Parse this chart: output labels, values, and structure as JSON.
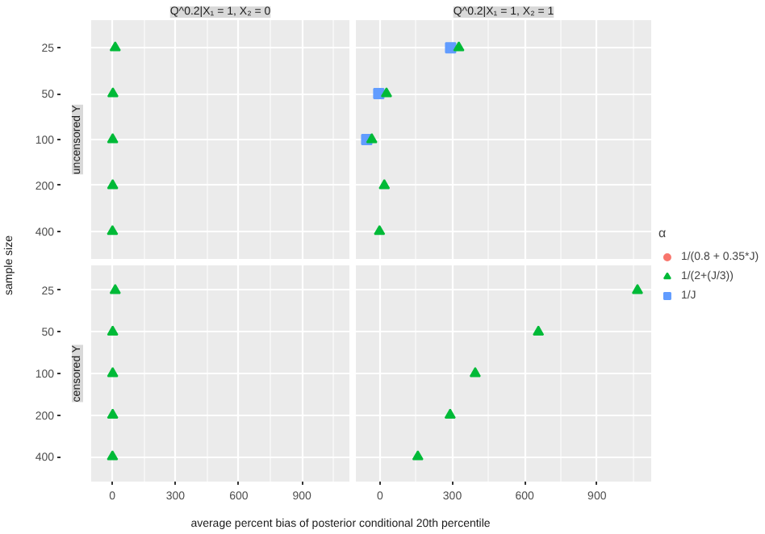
{
  "chart_data": [
    {
      "type": "scatter",
      "orientation": "horizontal",
      "title": "Q^0.2|X₁ = 1, X₂ = 0",
      "ylabel": "sample size",
      "annotations": [
        "uncensored Y"
      ],
      "categories": [
        "25",
        "50",
        "100",
        "200",
        "400"
      ],
      "xlim": [
        -100,
        1125
      ],
      "xticks": [
        0,
        300,
        600,
        900
      ],
      "tick_labels": "y",
      "grid": true,
      "series": [
        {
          "color": "#f8766d",
          "marker": "circle",
          "values": [
            null,
            null,
            null,
            null,
            null
          ]
        },
        {
          "color": "#00ba38",
          "marker": "triangle",
          "values": [
            14,
            3,
            2,
            2,
            1
          ]
        },
        {
          "color": "#619cff",
          "marker": "square",
          "values": [
            null,
            null,
            null,
            null,
            null
          ]
        }
      ]
    },
    {
      "type": "scatter",
      "orientation": "horizontal",
      "title": "Q^0.2|X₁ = 1, X₂ = 1",
      "legend": "right",
      "legend_title": "α",
      "categories": [
        "25",
        "50",
        "100",
        "200",
        "400"
      ],
      "xlim": [
        -100,
        1125
      ],
      "xticks": [
        0,
        300,
        600,
        900
      ],
      "tick_labels": false,
      "grid": true,
      "series": [
        {
          "name": "1/(0.8 + 0.35*J)",
          "color": "#f8766d",
          "marker": "circle",
          "values": [
            null,
            null,
            null,
            null,
            null
          ]
        },
        {
          "name": "1/(2+(J/3))",
          "color": "#00ba38",
          "marker": "triangle",
          "values": [
            327,
            27,
            -34,
            18,
            -2
          ]
        },
        {
          "name": "1/J",
          "color": "#619cff",
          "marker": "square",
          "values": [
            293,
            -5,
            -55,
            null,
            null
          ]
        }
      ]
    },
    {
      "type": "scatter",
      "orientation": "horizontal",
      "xlabel": "average percent bias of posterior conditional 20th percentile",
      "annotations": [
        "censored Y"
      ],
      "categories": [
        "25",
        "50",
        "100",
        "200",
        "400"
      ],
      "xlim": [
        -100,
        1125
      ],
      "xticks": [
        0,
        300,
        600,
        900
      ],
      "grid": true,
      "series": [
        {
          "color": "#f8766d",
          "marker": "circle",
          "values": [
            null,
            null,
            null,
            null,
            null
          ]
        },
        {
          "color": "#00ba38",
          "marker": "triangle",
          "values": [
            14,
            2,
            2,
            2,
            1
          ]
        },
        {
          "color": "#619cff",
          "marker": "square",
          "values": [
            null,
            null,
            null,
            null,
            null
          ]
        }
      ]
    },
    {
      "type": "scatter",
      "orientation": "horizontal",
      "categories": [
        "25",
        "50",
        "100",
        "200",
        "400"
      ],
      "xlim": [
        -100,
        1125
      ],
      "xticks": [
        0,
        300,
        600,
        900
      ],
      "tick_labels": "x",
      "grid": true,
      "series": [
        {
          "color": "#f8766d",
          "marker": "circle",
          "values": [
            null,
            null,
            null,
            null,
            null
          ]
        },
        {
          "color": "#00ba38",
          "marker": "triangle",
          "values": [
            1068,
            657,
            395,
            291,
            157
          ]
        },
        {
          "color": "#619cff",
          "marker": "square",
          "values": [
            null,
            null,
            null,
            null,
            null
          ]
        }
      ]
    }
  ]
}
